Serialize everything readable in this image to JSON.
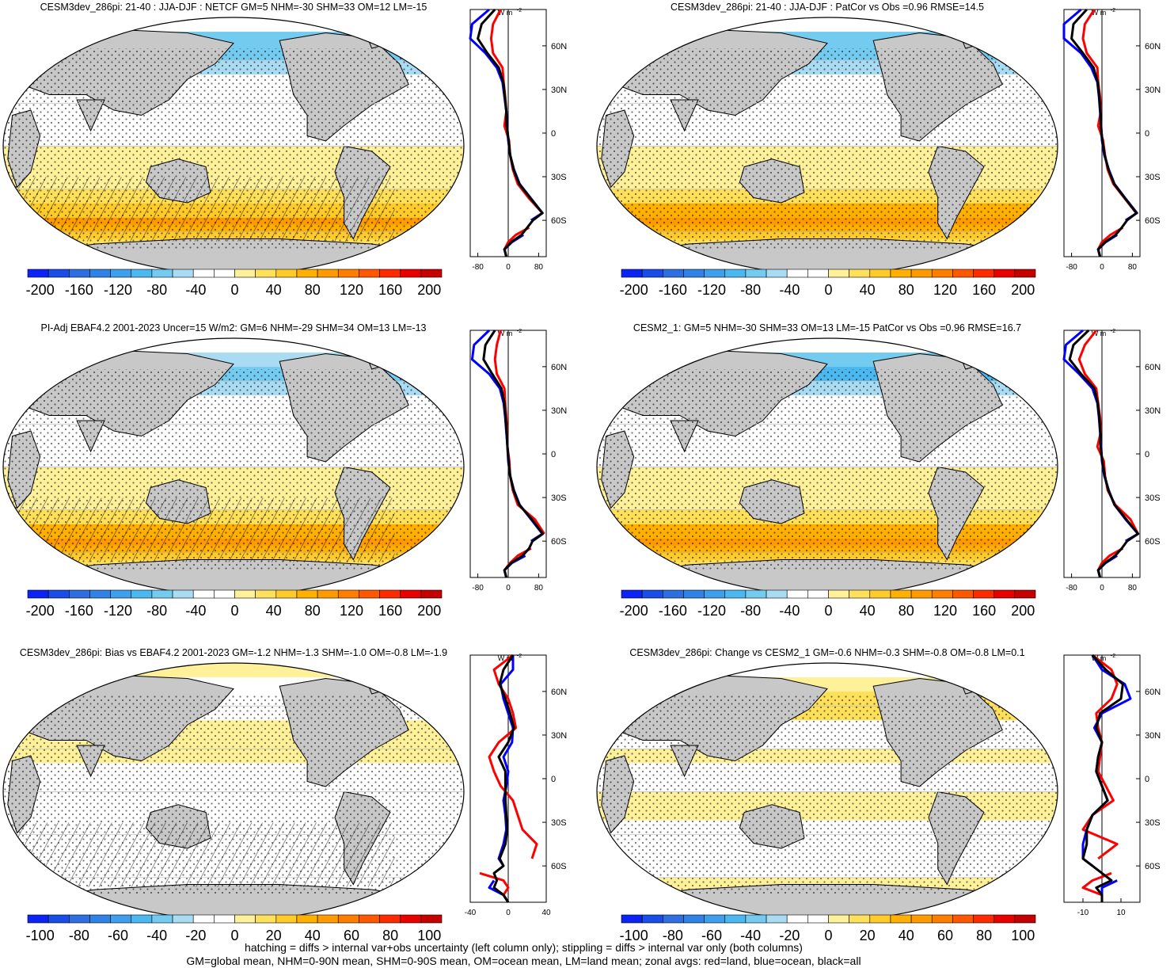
{
  "figure": {
    "footer": {
      "line1": "hatching = diffs > internal var+obs uncertainty (left column only); stippling = diffs > internal var only (both columns)",
      "line2": "GM=global mean, NHM=0-90N mean, SHM=0-90S mean, OM=ocean mean, LM=land mean; zonal avgs: red=land, blue=ocean, black=all"
    },
    "colors": {
      "land": "#c8c8c8",
      "zonal_land": "#ff0000",
      "zonal_ocean": "#0000ff",
      "zonal_all": "#000000",
      "scale": [
        "#0b24f5",
        "#1a4ce8",
        "#2e6ee0",
        "#2f82e6",
        "#3ea0ec",
        "#4bb8f0",
        "#74cbf0",
        "#a9dcf2",
        "#ffffff",
        "#ffffff",
        "#fff09a",
        "#ffe05a",
        "#ffcb2a",
        "#ffb000",
        "#ff9a00",
        "#ff7d00",
        "#ff5800",
        "#ff2a00",
        "#e80000",
        "#c40000"
      ]
    },
    "lat_tick_labels": [
      "60N",
      "30N",
      "0",
      "30S",
      "60S"
    ]
  },
  "chart_data": [
    {
      "type": "heatmap",
      "title": "CESM3dev_286pi: 21-40 : JJA-DJF : NETCF GM=5 NHM=-30 SHM=33 OM=12 LM=-15",
      "colorbar_labels": [
        "-200",
        "-160",
        "-120",
        "-80",
        "-40",
        "0",
        "40",
        "80",
        "120",
        "160",
        "200"
      ],
      "colorbar_range": [
        -200,
        200
      ],
      "hatching": true,
      "zonal": {
        "unit_label": "W m",
        "unit_sup": "-2",
        "x_ticks": [
          "-80",
          "0",
          "80"
        ],
        "xlim": [
          -100,
          100
        ],
        "lat": [
          85,
          75,
          65,
          55,
          45,
          35,
          25,
          15,
          5,
          -5,
          -15,
          -25,
          -35,
          -45,
          -55,
          -60,
          -65,
          -70,
          -75,
          -80,
          -85
        ],
        "series": [
          {
            "name": "land",
            "values": [
              -20,
              -40,
              -45,
              -40,
              -15,
              -12,
              -8,
              -5,
              -10,
              2,
              5,
              12,
              25,
              55,
              90,
              null,
              55,
              20,
              0,
              -10,
              -5
            ]
          },
          {
            "name": "ocean",
            "values": [
              -50,
              -95,
              -110,
              -60,
              -30,
              -15,
              -10,
              -5,
              -3,
              0,
              5,
              15,
              30,
              60,
              90,
              60,
              null,
              40,
              10,
              -10,
              -5
            ]
          },
          {
            "name": "all",
            "values": [
              -35,
              -70,
              -80,
              -55,
              -25,
              -13,
              -9,
              -5,
              -4,
              1,
              5,
              14,
              29,
              59,
              90,
              65,
              50,
              35,
              8,
              -10,
              -5
            ]
          }
        ]
      }
    },
    {
      "type": "heatmap",
      "title": "CESM3dev_286pi: 21-40 : JJA-DJF : PatCor vs Obs =0.96 RMSE=14.5",
      "colorbar_labels": [
        "-200",
        "-160",
        "-120",
        "-80",
        "-40",
        "0",
        "40",
        "80",
        "120",
        "160",
        "200"
      ],
      "colorbar_range": [
        -200,
        200
      ],
      "hatching": false,
      "zonal": {
        "unit_label": "W m",
        "unit_sup": "-2",
        "x_ticks": [
          "-80",
          "0",
          "80"
        ],
        "xlim": [
          -100,
          100
        ],
        "lat": [
          85,
          75,
          65,
          55,
          45,
          35,
          25,
          15,
          5,
          -5,
          -15,
          -25,
          -35,
          -45,
          -55,
          -60,
          -65,
          -70,
          -75,
          -80,
          -85
        ],
        "series": [
          {
            "name": "land",
            "values": [
              -20,
              -45,
              -50,
              -40,
              -12,
              -10,
              -5,
              -3,
              -10,
              3,
              8,
              15,
              30,
              60,
              90,
              null,
              55,
              22,
              0,
              -10,
              -5
            ]
          },
          {
            "name": "ocean",
            "values": [
              -55,
              -100,
              -110,
              -55,
              -28,
              -12,
              -8,
              -5,
              -2,
              0,
              6,
              18,
              33,
              62,
              92,
              62,
              null,
              40,
              10,
              -10,
              -5
            ]
          },
          {
            "name": "all",
            "values": [
              -40,
              -75,
              -80,
              -50,
              -22,
              -11,
              -7,
              -4,
              -3,
              1,
              7,
              17,
              32,
              61,
              91,
              66,
              52,
              36,
              8,
              -10,
              -5
            ]
          }
        ]
      }
    },
    {
      "type": "heatmap",
      "title": "PI-Adj EBAF4.2 2001-2023 Uncer=15 W/m2: GM=6 NHM=-29 SHM=34 OM=13 LM=-13",
      "colorbar_labels": [
        "-200",
        "-160",
        "-120",
        "-80",
        "-40",
        "0",
        "40",
        "80",
        "120",
        "160",
        "200"
      ],
      "colorbar_range": [
        -200,
        200
      ],
      "hatching": true,
      "zonal": {
        "unit_label": "W m",
        "unit_sup": "-2",
        "x_ticks": [
          "-80",
          "0",
          "80"
        ],
        "xlim": [
          -100,
          100
        ],
        "lat": [
          85,
          75,
          65,
          55,
          45,
          35,
          25,
          15,
          5,
          -5,
          -15,
          -25,
          -35,
          -45,
          -55,
          -60,
          -65,
          -70,
          -75,
          -80,
          -85
        ],
        "series": [
          {
            "name": "land",
            "values": [
              -20,
              -30,
              -35,
              -30,
              -10,
              -8,
              -5,
              -3,
              -2,
              3,
              5,
              12,
              25,
              70,
              95,
              null,
              60,
              25,
              5,
              -10,
              -5
            ]
          },
          {
            "name": "ocean",
            "values": [
              -50,
              -90,
              -95,
              -50,
              -22,
              -12,
              -8,
              -5,
              -2,
              0,
              5,
              15,
              30,
              60,
              90,
              60,
              null,
              45,
              10,
              -10,
              -5
            ]
          },
          {
            "name": "all",
            "values": [
              -35,
              -60,
              -65,
              -42,
              -18,
              -10,
              -7,
              -4,
              -2,
              1,
              5,
              14,
              29,
              62,
              91,
              64,
              55,
              38,
              8,
              -10,
              -5
            ]
          }
        ]
      }
    },
    {
      "type": "heatmap",
      "title": "CESM2_1: GM=5 NHM=-30 SHM=33 OM=13 LM=-15 PatCor vs Obs =0.96 RMSE=16.7",
      "colorbar_labels": [
        "-200",
        "-160",
        "-120",
        "-80",
        "-40",
        "0",
        "40",
        "80",
        "120",
        "160",
        "200"
      ],
      "colorbar_range": [
        -200,
        200
      ],
      "hatching": false,
      "zonal": {
        "unit_label": "W m",
        "unit_sup": "-2",
        "x_ticks": [
          "-80",
          "0",
          "80"
        ],
        "xlim": [
          -100,
          100
        ],
        "lat": [
          85,
          75,
          65,
          55,
          45,
          35,
          25,
          15,
          5,
          -5,
          -15,
          -25,
          -35,
          -45,
          -55,
          -60,
          -65,
          -70,
          -75,
          -80,
          -85
        ],
        "series": [
          {
            "name": "land",
            "values": [
              -15,
              -45,
              -60,
              -45,
              -15,
              -10,
              -5,
              -3,
              -12,
              5,
              8,
              15,
              35,
              75,
              95,
              null,
              55,
              20,
              0,
              -10,
              -5
            ]
          },
          {
            "name": "ocean",
            "values": [
              -50,
              -95,
              -105,
              -60,
              -25,
              -12,
              -8,
              -5,
              -2,
              0,
              6,
              18,
              33,
              62,
              95,
              62,
              null,
              40,
              10,
              -10,
              -5
            ]
          },
          {
            "name": "all",
            "values": [
              -35,
              -75,
              -85,
              -55,
              -20,
              -11,
              -7,
              -4,
              -4,
              1,
              7,
              17,
              33,
              64,
              95,
              66,
              52,
              35,
              8,
              -10,
              -5
            ]
          }
        ]
      }
    },
    {
      "type": "heatmap",
      "title": "CESM3dev_286pi: Bias vs EBAF4.2 2001-2023 GM=-1.2 NHM=-1.3 SHM=-1.0 OM=-0.8 LM=-1.9",
      "colorbar_labels": [
        "-100",
        "-80",
        "-60",
        "-40",
        "-20",
        "0",
        "20",
        "40",
        "60",
        "80",
        "100"
      ],
      "colorbar_range": [
        -100,
        100
      ],
      "hatching": true,
      "zonal": {
        "unit_label": "W m",
        "unit_sup": "-2",
        "x_ticks": [
          "-40",
          "0",
          "40"
        ],
        "xlim": [
          -40,
          40
        ],
        "lat": [
          85,
          75,
          65,
          55,
          45,
          35,
          25,
          15,
          5,
          -5,
          -15,
          -25,
          -35,
          -45,
          -55,
          -60,
          -65,
          -70,
          -75,
          -80,
          -85
        ],
        "series": [
          {
            "name": "land",
            "values": [
              5,
              -15,
              -10,
              0,
              5,
              8,
              -10,
              -20,
              -15,
              -8,
              5,
              10,
              15,
              30,
              25,
              null,
              -30,
              -5,
              0,
              -5,
              0
            ]
          },
          {
            "name": "ocean",
            "values": [
              5,
              5,
              -8,
              -5,
              0,
              5,
              4,
              -5,
              0,
              -2,
              -5,
              -3,
              -2,
              -5,
              -10,
              -5,
              null,
              -15,
              -20,
              -5,
              0
            ]
          },
          {
            "name": "all",
            "values": [
              5,
              -5,
              -9,
              -3,
              2,
              6,
              0,
              -10,
              -3,
              -3,
              -3,
              -2,
              -1,
              -3,
              -9,
              -5,
              -15,
              -12,
              -15,
              -5,
              0
            ]
          }
        ]
      }
    },
    {
      "type": "heatmap",
      "title": "CESM3dev_286pi: Change vs CESM2_1 GM=-0.6 NHM=-0.3 SHM=-0.8 OM=-0.8 LM=0.1",
      "colorbar_labels": [
        "-100",
        "-80",
        "-60",
        "-40",
        "-20",
        "0",
        "20",
        "40",
        "60",
        "80",
        "100"
      ],
      "colorbar_range": [
        -100,
        100
      ],
      "hatching": false,
      "zonal": {
        "unit_label": "W m",
        "unit_sup": "-2",
        "x_ticks": [
          "-10",
          "10"
        ],
        "xlim": [
          -20,
          20
        ],
        "lat": [
          85,
          75,
          65,
          55,
          45,
          35,
          25,
          15,
          5,
          -5,
          -15,
          -25,
          -35,
          -45,
          -55,
          -60,
          -65,
          -70,
          -75,
          -80,
          -85
        ],
        "series": [
          {
            "name": "land",
            "values": [
              -5,
              5,
              8,
              5,
              -3,
              -2,
              0,
              -1,
              -2,
              2,
              6,
              -5,
              -10,
              8,
              -2,
              null,
              5,
              -5,
              -10,
              0,
              0
            ]
          },
          {
            "name": "ocean",
            "values": [
              -5,
              0,
              12,
              15,
              0,
              -4,
              0,
              -2,
              -3,
              0,
              3,
              -5,
              -8,
              -10,
              -10,
              -5,
              null,
              8,
              0,
              0,
              0
            ]
          },
          {
            "name": "all",
            "values": [
              -5,
              2,
              11,
              10,
              -1,
              -3,
              0,
              -2,
              -3,
              0,
              3,
              -5,
              -8,
              -8,
              -10,
              -5,
              0,
              5,
              -3,
              0,
              0
            ]
          }
        ]
      }
    }
  ]
}
